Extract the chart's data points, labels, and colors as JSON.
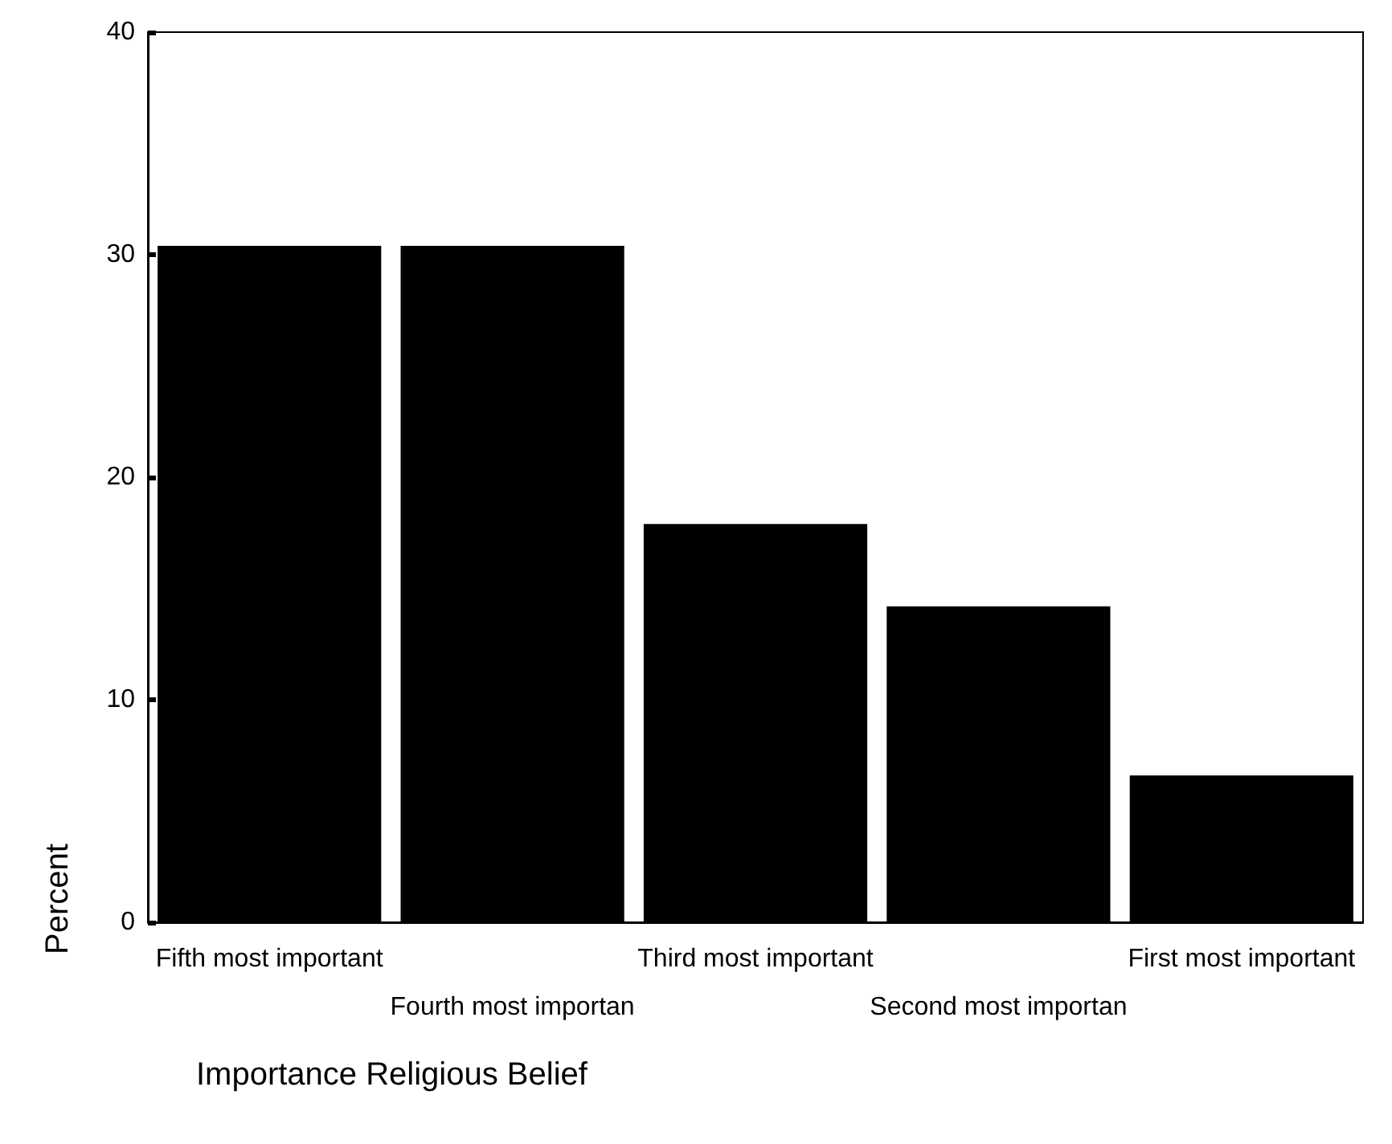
{
  "chart_data": {
    "type": "bar",
    "categories": [
      "Fifth most important",
      "Fourth most importan",
      "Third most important",
      "Second most importan",
      "First most important"
    ],
    "values": [
      30.4,
      30.4,
      17.9,
      14.2,
      6.6
    ],
    "color": "#000000",
    "xlabel": "Importance Religious Belief",
    "ylabel": "Percent",
    "ylim": [
      0,
      40
    ],
    "yticks": [
      0,
      10,
      20,
      30,
      40
    ],
    "grid": false
  }
}
